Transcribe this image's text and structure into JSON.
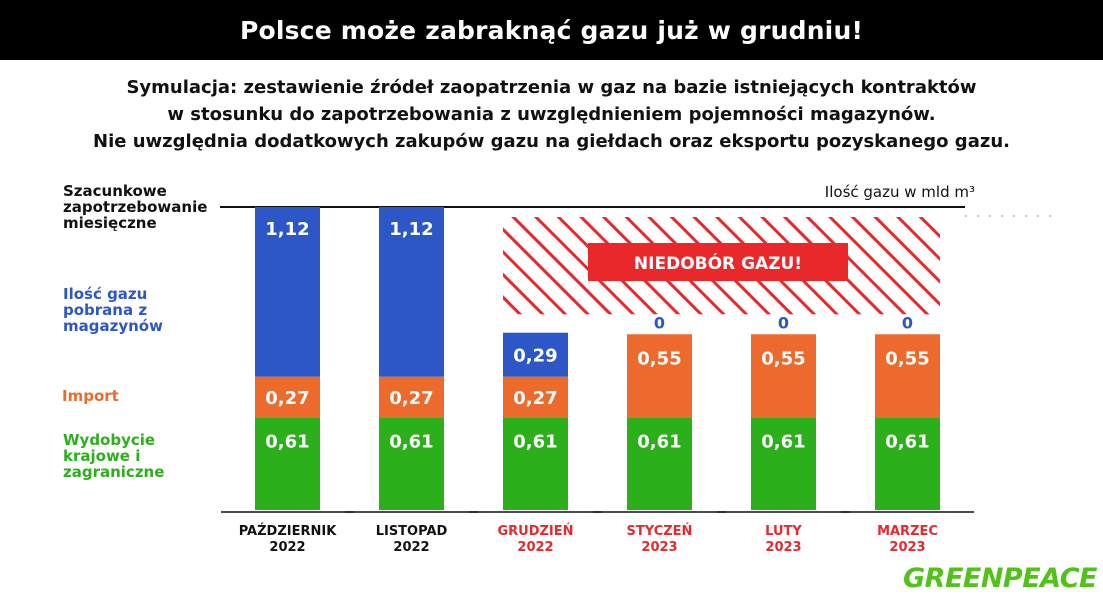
{
  "header": {
    "title": "Polsce może zabraknąć gazu już w grudniu!",
    "subtitle_lines": [
      "Symulacja: zestawienie źródeł zaopatrzenia w gaz na bazie istniejących kontraktów",
      "w stosunku do zapotrzebowania z uwzględnieniem pojemności magazynów.",
      "Nie uwzględnia dodatkowych zakupów gazu na giełdach oraz eksportu pozyskanego gazu."
    ]
  },
  "legend": {
    "demand": "Szacunkowe zapotrzebowanie miesięczne",
    "storage": "Ilość gazu pobrana z magazynów",
    "import": "Import",
    "domestic": "Wydobycie krajowe i zagraniczne"
  },
  "unit_label": "Ilość gazu w mld m³",
  "logo": "GREENPEACE",
  "colors": {
    "domestic": "#2bb01c",
    "import": "#ec6a2b",
    "storage": "#2d57c7",
    "alert": "#e8282b",
    "highlight_label": "#e8282b"
  },
  "chart_data": {
    "type": "bar",
    "stacked": true,
    "categories": [
      [
        "PAŹDZIERNIK",
        "2022"
      ],
      [
        "LISTOPAD",
        "2022"
      ],
      [
        "GRUDZIEŃ",
        "2022"
      ],
      [
        "STYCZEŃ",
        "2023"
      ],
      [
        "LUTY",
        "2023"
      ],
      [
        "MARZEC",
        "2023"
      ]
    ],
    "category_highlight": [
      false,
      false,
      true,
      true,
      true,
      true
    ],
    "series": [
      {
        "name": "Wydobycie krajowe i zagraniczne",
        "key": "domestic",
        "values": [
          0.61,
          0.61,
          0.61,
          0.61,
          0.61,
          0.61
        ],
        "labels": [
          "0,61",
          "0,61",
          "0,61",
          "0,61",
          "0,61",
          "0,61"
        ]
      },
      {
        "name": "Import",
        "key": "import",
        "values": [
          0.27,
          0.27,
          0.27,
          0.55,
          0.55,
          0.55
        ],
        "labels": [
          "0,27",
          "0,27",
          "0,27",
          "0,55",
          "0,55",
          "0,55"
        ]
      },
      {
        "name": "Ilość gazu pobrana z magazynów",
        "key": "storage",
        "values": [
          1.12,
          1.12,
          0.29,
          0,
          0,
          0
        ],
        "labels": [
          "1,12",
          "1,12",
          "0,29",
          "0",
          "0",
          "0"
        ]
      }
    ],
    "demand_line": 2.0,
    "shortage_label": "NIEDOBÓR GAZU!",
    "ylim": [
      0,
      2.0
    ]
  }
}
